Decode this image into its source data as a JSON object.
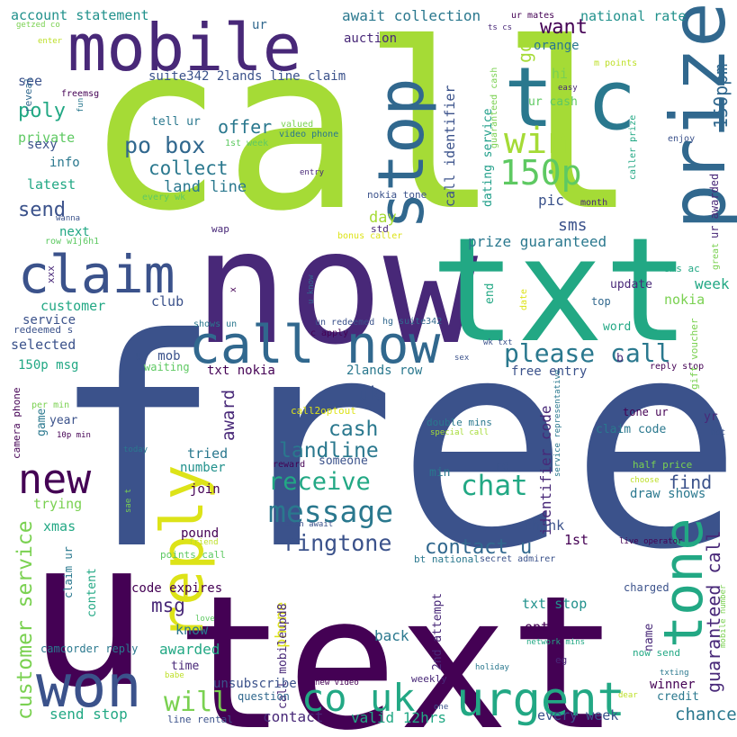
{
  "words": [
    {
      "text": "call",
      "color": "#a5db36"
    },
    {
      "text": "free",
      "color": "#3b528b"
    },
    {
      "text": "now",
      "color": "#482878"
    },
    {
      "text": "txt",
      "color": "#22a884"
    },
    {
      "text": "u",
      "color": "#440154"
    },
    {
      "text": "text",
      "color": "#440154"
    },
    {
      "text": "mobile",
      "color": "#482878"
    },
    {
      "text": "c",
      "color": "#2a788e"
    },
    {
      "text": "t",
      "color": "#2a788e"
    },
    {
      "text": "prize",
      "color": "#31688e"
    },
    {
      "text": "stop",
      "color": "#31688e"
    },
    {
      "text": "claim",
      "color": "#3b528b"
    },
    {
      "text": "call now",
      "color": "#31688e"
    },
    {
      "text": "reply",
      "color": "#dde318"
    },
    {
      "text": "won",
      "color": "#3b528b"
    },
    {
      "text": "urgent",
      "color": "#22a884"
    },
    {
      "text": "co uk",
      "color": "#22a884"
    },
    {
      "text": "tone",
      "color": "#22a884"
    },
    {
      "text": "new",
      "color": "#440154"
    },
    {
      "text": "150p",
      "color": "#5ec962"
    },
    {
      "text": "win",
      "color": "#a5db36"
    },
    {
      "text": "please call",
      "color": "#2a788e"
    },
    {
      "text": "message",
      "color": "#2a788e"
    },
    {
      "text": "chat",
      "color": "#22a884"
    },
    {
      "text": "receive",
      "color": "#22a884"
    },
    {
      "text": "ringtone",
      "color": "#3b528b"
    },
    {
      "text": "contact u",
      "color": "#31688e"
    },
    {
      "text": "landline",
      "color": "#2a788e"
    },
    {
      "text": "cash",
      "color": "#2a788e"
    },
    {
      "text": "will",
      "color": "#7ad151"
    },
    {
      "text": "customer service",
      "color": "#7ad151"
    },
    {
      "text": "guaranteed call",
      "color": "#482878"
    },
    {
      "text": "150ppm",
      "color": "#31688e"
    },
    {
      "text": "po box",
      "color": "#31688e"
    },
    {
      "text": "collect",
      "color": "#2a788e"
    },
    {
      "text": "offer",
      "color": "#2a788e"
    },
    {
      "text": "land line",
      "color": "#2a788e"
    },
    {
      "text": "send",
      "color": "#3b528b"
    },
    {
      "text": "poly",
      "color": "#22a884"
    },
    {
      "text": "want",
      "color": "#440154"
    },
    {
      "text": "go",
      "color": "#a5db36"
    },
    {
      "text": "award",
      "color": "#482878"
    },
    {
      "text": "msg",
      "color": "#482878"
    },
    {
      "text": "uk",
      "color": "#3b528b"
    },
    {
      "text": "find",
      "color": "#3b528b"
    },
    {
      "text": "chance",
      "color": "#2a788e"
    },
    {
      "text": "sms",
      "color": "#3b528b"
    },
    {
      "text": "day",
      "color": "#a5db36"
    },
    {
      "text": "pic",
      "color": "#3b528b"
    },
    {
      "text": "phone",
      "color": "#dde318"
    },
    {
      "text": "week",
      "color": "#22a884"
    },
    {
      "text": "nokia",
      "color": "#7ad151"
    },
    {
      "text": "identifier code",
      "color": "#482878"
    },
    {
      "text": "prize guaranteed",
      "color": "#2a788e"
    },
    {
      "text": "call identifier",
      "color": "#3b528b"
    },
    {
      "text": "dating service",
      "color": "#1f9e89"
    },
    {
      "text": "account statement",
      "color": "#21918c"
    },
    {
      "text": "await collection",
      "color": "#2a788e"
    },
    {
      "text": "national rate",
      "color": "#21918c"
    },
    {
      "text": "auction",
      "color": "#482878"
    },
    {
      "text": "orange",
      "color": "#2a788e"
    },
    {
      "text": "suite342 2lands line claim",
      "color": "#3b528b"
    },
    {
      "text": "ur",
      "color": "#31688e"
    },
    {
      "text": "ur mates",
      "color": "#440154"
    },
    {
      "text": "ts cs",
      "color": "#482878"
    },
    {
      "text": "hi",
      "color": "#7ad151"
    },
    {
      "text": "ur cash",
      "color": "#5ec962"
    },
    {
      "text": "m points",
      "color": "#bddf26"
    },
    {
      "text": "easy",
      "color": "#482878"
    },
    {
      "text": "see",
      "color": "#3b528b"
    },
    {
      "text": "reveal",
      "color": "#31688e"
    },
    {
      "text": "freemsg",
      "color": "#440154"
    },
    {
      "text": "fun",
      "color": "#2a788e"
    },
    {
      "text": "private",
      "color": "#5ec962"
    },
    {
      "text": "sexy",
      "color": "#3b528b"
    },
    {
      "text": "info",
      "color": "#2a788e"
    },
    {
      "text": "latest",
      "color": "#22a884"
    },
    {
      "text": "tell ur",
      "color": "#2a788e"
    },
    {
      "text": "1st week",
      "color": "#5ec962"
    },
    {
      "text": "valued",
      "color": "#7ad151"
    },
    {
      "text": "video phone",
      "color": "#2a788e"
    },
    {
      "text": "entry",
      "color": "#482878"
    },
    {
      "text": "every wk",
      "color": "#5ec962"
    },
    {
      "text": "wanna",
      "color": "#3b528b"
    },
    {
      "text": "next",
      "color": "#22a884"
    },
    {
      "text": "row w1j6h1",
      "color": "#5ec962"
    },
    {
      "text": "wap",
      "color": "#482878"
    },
    {
      "text": "std",
      "color": "#482878"
    },
    {
      "text": "bonus caller",
      "color": "#dde318"
    },
    {
      "text": "nokia tone",
      "color": "#3b528b"
    },
    {
      "text": "month",
      "color": "#482878"
    },
    {
      "text": "caller prize",
      "color": "#22a884"
    },
    {
      "text": "guaranteed cash",
      "color": "#7ad151"
    },
    {
      "text": "enjoy",
      "color": "#3b528b"
    },
    {
      "text": "ur awarded",
      "color": "#482878"
    },
    {
      "text": "great",
      "color": "#7ad151"
    },
    {
      "text": "sms ac",
      "color": "#22a884"
    },
    {
      "text": "update",
      "color": "#482878"
    },
    {
      "text": "top",
      "color": "#31688e"
    },
    {
      "text": "date",
      "color": "#dde318"
    },
    {
      "text": "end",
      "color": "#22a884"
    },
    {
      "text": "word",
      "color": "#22a884"
    },
    {
      "text": "xxx",
      "color": "#482878"
    },
    {
      "text": "u know",
      "color": "#31688e"
    },
    {
      "text": "x",
      "color": "#440154"
    },
    {
      "text": "club",
      "color": "#3b528b"
    },
    {
      "text": "customer",
      "color": "#22a884"
    },
    {
      "text": "service",
      "color": "#3b528b"
    },
    {
      "text": "redeemed s",
      "color": "#3b528b"
    },
    {
      "text": "selected",
      "color": "#3b528b"
    },
    {
      "text": "shows un",
      "color": "#2a788e"
    },
    {
      "text": "un redeemed",
      "color": "#3b528b"
    },
    {
      "text": "hg suite342",
      "color": "#31688e"
    },
    {
      "text": "c apply",
      "color": "#440154"
    },
    {
      "text": "wk txt",
      "color": "#3b528b"
    },
    {
      "text": "ur mob",
      "color": "#3b528b"
    },
    {
      "text": "waiting",
      "color": "#5ec962"
    },
    {
      "text": "150p msg",
      "color": "#22a884"
    },
    {
      "text": "txt nokia",
      "color": "#440154"
    },
    {
      "text": "2lands row",
      "color": "#2a788e"
    },
    {
      "text": "sex",
      "color": "#3b528b"
    },
    {
      "text": "free entry",
      "color": "#3b528b"
    },
    {
      "text": "b",
      "color": "#482878"
    },
    {
      "text": "reply stop",
      "color": "#440154"
    },
    {
      "text": "gift voucher",
      "color": "#7ad151"
    },
    {
      "text": "camera phone",
      "color": "#440154"
    },
    {
      "text": "per min",
      "color": "#7ad151"
    },
    {
      "text": "10p min",
      "color": "#440154"
    },
    {
      "text": "year",
      "color": "#3b528b"
    },
    {
      "text": "game",
      "color": "#2a788e"
    },
    {
      "text": "call2optout",
      "color": "#dde318"
    },
    {
      "text": "double mins",
      "color": "#2a788e"
    },
    {
      "text": "special call",
      "color": "#a5db36"
    },
    {
      "text": "service representative",
      "color": "#2a788e"
    },
    {
      "text": "tone ur",
      "color": "#440154"
    },
    {
      "text": "claim code",
      "color": "#2a788e"
    },
    {
      "text": "yr",
      "color": "#482878"
    },
    {
      "text": "hot",
      "color": "#3b528b"
    },
    {
      "text": "today",
      "color": "#2a788e"
    },
    {
      "text": "reward",
      "color": "#440154"
    },
    {
      "text": "someone",
      "color": "#3b528b"
    },
    {
      "text": "tried",
      "color": "#2a788e"
    },
    {
      "text": "number",
      "color": "#21918c"
    },
    {
      "text": "re",
      "color": "#3b528b"
    },
    {
      "text": "min",
      "color": "#2a788e"
    },
    {
      "text": "half price",
      "color": "#7ad151"
    },
    {
      "text": "choose",
      "color": "#bddf26"
    },
    {
      "text": "draw shows",
      "color": "#2a788e"
    },
    {
      "text": "trying",
      "color": "#7ad151"
    },
    {
      "text": "join",
      "color": "#440154"
    },
    {
      "text": "sae t",
      "color": "#7ad151"
    },
    {
      "text": "xmas",
      "color": "#22a884"
    },
    {
      "text": "thank",
      "color": "#3b528b"
    },
    {
      "text": "1st",
      "color": "#440154"
    },
    {
      "text": "cash await",
      "color": "#3b528b"
    },
    {
      "text": "pound",
      "color": "#440154"
    },
    {
      "text": "friend",
      "color": "#bddf26"
    },
    {
      "text": "points call",
      "color": "#5ec962"
    },
    {
      "text": "bt national",
      "color": "#2a788e"
    },
    {
      "text": "secret admirer",
      "color": "#3b528b"
    },
    {
      "text": "live operator",
      "color": "#440154"
    },
    {
      "text": "mobile number",
      "color": "#7ad151"
    },
    {
      "text": "claim ur",
      "color": "#2a788e"
    },
    {
      "text": "code expires",
      "color": "#440154"
    },
    {
      "text": "call mobileupd8",
      "color": "#482878"
    },
    {
      "text": "txt stop",
      "color": "#21918c"
    },
    {
      "text": "charged",
      "color": "#3b528b"
    },
    {
      "text": "content",
      "color": "#22a884"
    },
    {
      "text": "know",
      "color": "#2a788e"
    },
    {
      "text": "2nd attempt",
      "color": "#482878"
    },
    {
      "text": "opt",
      "color": "#440154"
    },
    {
      "text": "name",
      "color": "#482878"
    },
    {
      "text": "love",
      "color": "#5ec962"
    },
    {
      "text": "camcorder reply",
      "color": "#2a788e"
    },
    {
      "text": "awarded",
      "color": "#22a884"
    },
    {
      "text": "time",
      "color": "#482878"
    },
    {
      "text": "back",
      "color": "#2a788e"
    },
    {
      "text": "network mins",
      "color": "#22a884"
    },
    {
      "text": "eg",
      "color": "#482878"
    },
    {
      "text": "now send",
      "color": "#22a884"
    },
    {
      "text": "babe",
      "color": "#bddf26"
    },
    {
      "text": "new video",
      "color": "#440154"
    },
    {
      "text": "holiday",
      "color": "#2a788e"
    },
    {
      "text": "weekly",
      "color": "#482878"
    },
    {
      "text": "winner",
      "color": "#440154"
    },
    {
      "text": "txting",
      "color": "#2a788e"
    },
    {
      "text": "unsubscribe",
      "color": "#3b528b"
    },
    {
      "text": "question",
      "color": "#31688e"
    },
    {
      "text": "one",
      "color": "#3b528b"
    },
    {
      "text": "dear",
      "color": "#bddf26"
    },
    {
      "text": "credit",
      "color": "#2a788e"
    },
    {
      "text": "send stop",
      "color": "#22a884"
    },
    {
      "text": "contact",
      "color": "#482878"
    },
    {
      "text": "valid 12hrs",
      "color": "#22a884"
    },
    {
      "text": "every week",
      "color": "#3b528b"
    },
    {
      "text": "line rental",
      "color": "#3b528b"
    },
    {
      "text": "getzed co",
      "color": "#7ad151"
    },
    {
      "text": "enter",
      "color": "#bddf26"
    }
  ]
}
